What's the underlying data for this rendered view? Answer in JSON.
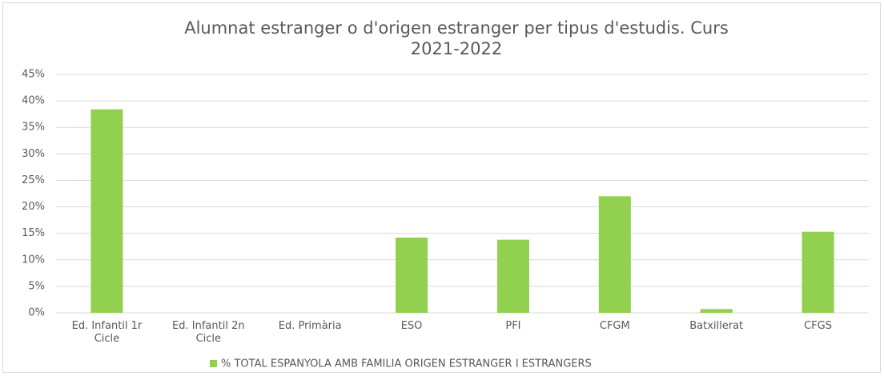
{
  "chart_data": {
    "type": "bar",
    "title": [
      "Alumnat estranger o d'origen estranger per tipus d'estudis. Curs",
      "2021-2022"
    ],
    "categories": [
      "Ed. Infantil 1r Cicle",
      "Ed. Infantil 2n Cicle",
      "Ed. Primària",
      "ESO",
      "PFI",
      "CFGM",
      "Batxillerat",
      "CFGS"
    ],
    "series": [
      {
        "name": "% TOTAL ESPANYOLA AMB FAMILIA ORIGEN ESTRANGER I ESTRANGERS",
        "color": "#92d050",
        "values": [
          38.4,
          0,
          0,
          14.2,
          13.8,
          22.0,
          0.7,
          15.3
        ]
      }
    ],
    "ylim": [
      0,
      45
    ],
    "yticks": [
      {
        "value": 0,
        "label": "0%"
      },
      {
        "value": 5,
        "label": "5%"
      },
      {
        "value": 10,
        "label": "10%"
      },
      {
        "value": 15,
        "label": "15%"
      },
      {
        "value": 20,
        "label": "20%"
      },
      {
        "value": 25,
        "label": "25%"
      },
      {
        "value": 30,
        "label": "30%"
      },
      {
        "value": 35,
        "label": "35%"
      },
      {
        "value": 40,
        "label": "40%"
      },
      {
        "value": 45,
        "label": "45%"
      }
    ],
    "grid": true,
    "legend": "bottom"
  }
}
